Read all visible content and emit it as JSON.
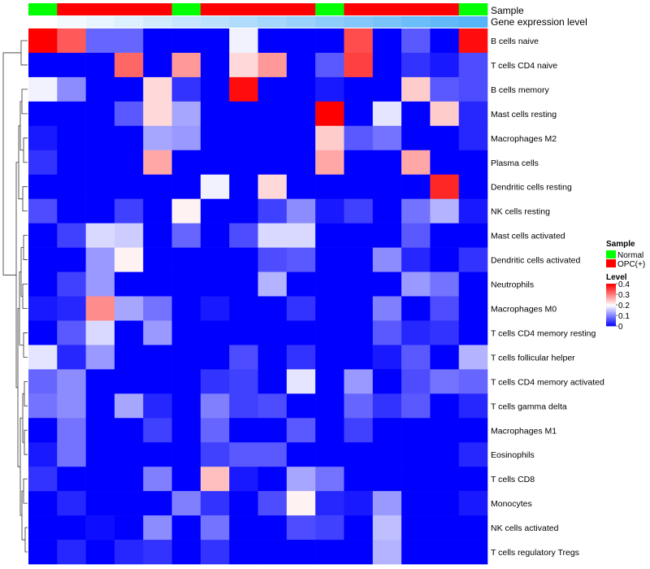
{
  "chart_data": {
    "type": "heatmap",
    "title": "",
    "columns": 16,
    "rows": [
      "B cells naive",
      "T cells CD4 naive",
      "B cells memory",
      "Mast cells resting",
      "Macrophages M2",
      "Plasma cells",
      "Dendritic cells resting",
      "NK cells resting",
      "Mast cells activated",
      "Dendritic cells activated",
      "Neutrophils",
      "Macrophages M0",
      "T cells CD4 memory resting",
      "T cells follicular helper",
      "T cells CD4 memory activated",
      "T cells gamma delta",
      "Macrophages M1",
      "Eosinophils",
      "T cells CD8",
      "Monocytes",
      "NK cells activated",
      "T cells regulatory  Tregs"
    ],
    "sample_annotation": {
      "label": "Sample",
      "values": [
        "Normal",
        "OPC(+)",
        "OPC(+)",
        "OPC(+)",
        "OPC(+)",
        "Normal",
        "OPC(+)",
        "OPC(+)",
        "OPC(+)",
        "OPC(+)",
        "Normal",
        "OPC(+)",
        "OPC(+)",
        "OPC(+)",
        "OPC(+)",
        "Normal"
      ]
    },
    "gene_expression_annotation": {
      "label": "Gene expression level",
      "values": [
        0.0,
        0.07,
        0.13,
        0.2,
        0.27,
        0.33,
        0.4,
        0.47,
        0.53,
        0.6,
        0.67,
        0.73,
        0.8,
        0.87,
        0.93,
        1.0
      ]
    },
    "values": [
      [
        0.4,
        0.33,
        0.08,
        0.08,
        0.0,
        0.0,
        0.0,
        0.19,
        0.0,
        0.0,
        0.0,
        0.34,
        0.0,
        0.07,
        0.0,
        0.39
      ],
      [
        0.0,
        0.0,
        0.0,
        0.32,
        0.0,
        0.28,
        0.0,
        0.23,
        0.28,
        0.0,
        0.07,
        0.35,
        0.0,
        0.04,
        0.02,
        0.06
      ],
      [
        0.19,
        0.11,
        0.0,
        0.0,
        0.23,
        0.04,
        0.0,
        0.39,
        0.0,
        0.0,
        0.02,
        0.0,
        0.0,
        0.24,
        0.07,
        0.06
      ],
      [
        0.0,
        0.0,
        0.0,
        0.07,
        0.23,
        0.13,
        0.0,
        0.0,
        0.0,
        0.0,
        0.4,
        0.0,
        0.18,
        0.0,
        0.24,
        0.03
      ],
      [
        0.02,
        0.0,
        0.0,
        0.0,
        0.13,
        0.12,
        0.0,
        0.0,
        0.0,
        0.0,
        0.24,
        0.07,
        0.09,
        0.0,
        0.0,
        0.03
      ],
      [
        0.04,
        0.0,
        0.0,
        0.0,
        0.27,
        0.0,
        0.0,
        0.0,
        0.0,
        0.0,
        0.27,
        0.0,
        0.0,
        0.27,
        0.0,
        0.0
      ],
      [
        0.0,
        0.0,
        0.0,
        0.0,
        0.0,
        0.0,
        0.19,
        0.0,
        0.23,
        0.0,
        0.0,
        0.0,
        0.0,
        0.0,
        0.37,
        0.0
      ],
      [
        0.06,
        0.0,
        0.0,
        0.05,
        0.0,
        0.21,
        0.0,
        0.0,
        0.05,
        0.11,
        0.02,
        0.05,
        0.0,
        0.09,
        0.14,
        0.02
      ],
      [
        0.0,
        0.05,
        0.17,
        0.16,
        0.0,
        0.08,
        0.0,
        0.06,
        0.17,
        0.17,
        0.0,
        0.0,
        0.0,
        0.07,
        0.0,
        0.0
      ],
      [
        0.0,
        0.0,
        0.12,
        0.21,
        0.0,
        0.0,
        0.0,
        0.0,
        0.06,
        0.07,
        0.0,
        0.0,
        0.11,
        0.03,
        0.0,
        0.04
      ],
      [
        0.0,
        0.05,
        0.12,
        0.0,
        0.0,
        0.0,
        0.0,
        0.0,
        0.14,
        0.0,
        0.0,
        0.0,
        0.0,
        0.12,
        0.09,
        0.0
      ],
      [
        0.02,
        0.03,
        0.29,
        0.13,
        0.09,
        0.0,
        0.02,
        0.0,
        0.0,
        0.04,
        0.0,
        0.0,
        0.1,
        0.0,
        0.06,
        0.0
      ],
      [
        0.0,
        0.07,
        0.17,
        0.0,
        0.12,
        0.0,
        0.0,
        0.0,
        0.0,
        0.0,
        0.0,
        0.0,
        0.07,
        0.03,
        0.04,
        0.0
      ],
      [
        0.18,
        0.03,
        0.12,
        0.0,
        0.0,
        0.0,
        0.0,
        0.06,
        0.0,
        0.04,
        0.0,
        0.0,
        0.02,
        0.07,
        0.0,
        0.14
      ],
      [
        0.08,
        0.11,
        0.0,
        0.0,
        0.0,
        0.0,
        0.04,
        0.05,
        0.0,
        0.18,
        0.0,
        0.12,
        0.0,
        0.06,
        0.09,
        0.08
      ],
      [
        0.09,
        0.11,
        0.0,
        0.13,
        0.03,
        0.0,
        0.1,
        0.05,
        0.06,
        0.0,
        0.0,
        0.08,
        0.04,
        0.07,
        0.0,
        0.03
      ],
      [
        0.0,
        0.09,
        0.0,
        0.0,
        0.05,
        0.0,
        0.08,
        0.0,
        0.0,
        0.07,
        0.0,
        0.05,
        0.0,
        0.0,
        0.0,
        0.0
      ],
      [
        0.02,
        0.09,
        0.0,
        0.0,
        0.0,
        0.0,
        0.05,
        0.07,
        0.07,
        0.0,
        0.0,
        0.0,
        0.0,
        0.0,
        0.0,
        0.03
      ],
      [
        0.04,
        0.0,
        0.0,
        0.0,
        0.1,
        0.0,
        0.25,
        0.02,
        0.0,
        0.13,
        0.09,
        0.0,
        0.0,
        0.0,
        0.0,
        0.0
      ],
      [
        0.0,
        0.03,
        0.0,
        0.0,
        0.0,
        0.1,
        0.04,
        0.0,
        0.06,
        0.21,
        0.03,
        0.02,
        0.12,
        0.0,
        0.0,
        0.02
      ],
      [
        0.0,
        0.0,
        0.01,
        0.0,
        0.11,
        0.0,
        0.09,
        0.0,
        0.0,
        0.06,
        0.05,
        0.0,
        0.15,
        0.0,
        0.0,
        0.0
      ],
      [
        0.0,
        0.03,
        0.0,
        0.03,
        0.04,
        0.0,
        0.04,
        0.0,
        0.0,
        0.0,
        0.0,
        0.0,
        0.14,
        0.0,
        0.0,
        0.0
      ]
    ],
    "legend": {
      "sample_title": "Sample",
      "sample_items": [
        {
          "label": "Normal",
          "color": "#00ff00"
        },
        {
          "label": "OPC(+)",
          "color": "#ff0000"
        }
      ],
      "level_title": "Level",
      "level_ticks": [
        "0.4",
        "0.3",
        "0.2",
        "0.1",
        "0"
      ],
      "level_values": [
        0.4,
        0.3,
        0.2,
        0.1,
        0
      ],
      "level_range": [
        0,
        0.4
      ],
      "placement": "right"
    },
    "colors": {
      "low": "#0000ff",
      "mid": "#ffffff",
      "high": "#ff0000",
      "normal": "#00ff00",
      "opc": "#ff0000",
      "gene_low": "#ffffff",
      "gene_high": "#56b4f9"
    }
  }
}
